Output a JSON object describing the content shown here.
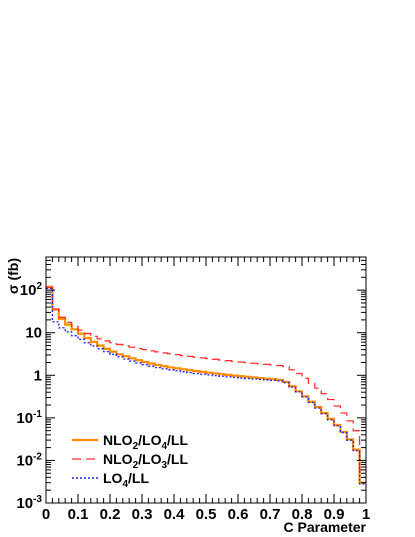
{
  "chart_data": {
    "type": "line",
    "style": "histogram-step",
    "xlabel": "C Parameter",
    "ylabel": "σ (fb)",
    "xlim": [
      0,
      1
    ],
    "ylim": [
      0.001,
      600
    ],
    "yscale": "log",
    "grid": false,
    "legend_position": "bottom-left",
    "x_ticks": [
      "0",
      "0.1",
      "0.2",
      "0.3",
      "0.4",
      "0.5",
      "0.6",
      "0.7",
      "0.8",
      "0.9",
      "1"
    ],
    "y_ticks": [
      {
        "base": "10",
        "exp": "-3",
        "value": 0.001
      },
      {
        "base": "10",
        "exp": "-2",
        "value": 0.01
      },
      {
        "base": "10",
        "exp": "-1",
        "value": 0.1
      },
      {
        "base": "1",
        "exp": "",
        "value": 1
      },
      {
        "base": "10",
        "exp": "",
        "value": 10
      },
      {
        "base": "10",
        "exp": "2",
        "value": 100
      }
    ],
    "bin_edges": [
      0,
      0.02,
      0.04,
      0.06,
      0.08,
      0.1,
      0.12,
      0.14,
      0.16,
      0.18,
      0.2,
      0.22,
      0.24,
      0.26,
      0.28,
      0.3,
      0.32,
      0.34,
      0.36,
      0.38,
      0.4,
      0.42,
      0.44,
      0.46,
      0.48,
      0.5,
      0.52,
      0.54,
      0.56,
      0.58,
      0.6,
      0.62,
      0.64,
      0.66,
      0.68,
      0.7,
      0.72,
      0.74,
      0.76,
      0.78,
      0.8,
      0.82,
      0.84,
      0.86,
      0.88,
      0.9,
      0.92,
      0.94,
      0.96,
      0.98,
      1.0
    ],
    "series": [
      {
        "name_main": "NLO",
        "name_parts": [
          {
            "t": "NLO",
            "sub": false
          },
          {
            "t": "2",
            "sub": true
          },
          {
            "t": "/LO",
            "sub": false
          },
          {
            "t": "4",
            "sub": true
          },
          {
            "t": "/LL",
            "sub": false
          }
        ],
        "color": "#ff8c00",
        "dash": "",
        "width": 2.2,
        "values": [
          120,
          35,
          21,
          15.5,
          12,
          9.5,
          7.5,
          6.1,
          5.0,
          4.2,
          3.6,
          3.1,
          2.8,
          2.5,
          2.25,
          2.05,
          1.88,
          1.75,
          1.63,
          1.53,
          1.45,
          1.38,
          1.31,
          1.25,
          1.2,
          1.15,
          1.1,
          1.06,
          1.02,
          0.98,
          0.95,
          0.92,
          0.89,
          0.86,
          0.83,
          0.81,
          0.78,
          0.7,
          0.55,
          0.42,
          0.32,
          0.24,
          0.18,
          0.13,
          0.095,
          0.068,
          0.047,
          0.031,
          0.018,
          0.003
        ]
      },
      {
        "name_main": "NLO",
        "name_parts": [
          {
            "t": "NLO",
            "sub": false
          },
          {
            "t": "2",
            "sub": true
          },
          {
            "t": "/LO",
            "sub": false
          },
          {
            "t": "3",
            "sub": true
          },
          {
            "t": "/LL",
            "sub": false
          }
        ],
        "color": "#ff3030",
        "dash": "9,5",
        "width": 1.3,
        "values": [
          115,
          36,
          23,
          17.5,
          14,
          11.5,
          9.6,
          8.2,
          7.2,
          6.4,
          5.8,
          5.3,
          4.9,
          4.55,
          4.25,
          4.0,
          3.75,
          3.55,
          3.35,
          3.2,
          3.05,
          2.9,
          2.78,
          2.66,
          2.56,
          2.46,
          2.37,
          2.28,
          2.2,
          2.12,
          2.05,
          1.98,
          1.92,
          1.86,
          1.8,
          1.75,
          1.7,
          1.6,
          1.35,
          1.1,
          0.85,
          0.65,
          0.5,
          0.37,
          0.27,
          0.19,
          0.13,
          0.085,
          0.05,
          0.006
        ]
      },
      {
        "name_main": "LO",
        "name_parts": [
          {
            "t": "LO",
            "sub": false
          },
          {
            "t": "4",
            "sub": true
          },
          {
            "t": "/LL",
            "sub": false
          }
        ],
        "color": "#2a2ad8",
        "dash": "2,2",
        "width": 1.4,
        "values": [
          110,
          18,
          13,
          10.5,
          8.5,
          7.0,
          5.8,
          4.9,
          4.2,
          3.6,
          3.1,
          2.7,
          2.4,
          2.15,
          1.95,
          1.78,
          1.64,
          1.52,
          1.42,
          1.34,
          1.27,
          1.21,
          1.15,
          1.1,
          1.06,
          1.02,
          0.98,
          0.95,
          0.92,
          0.89,
          0.86,
          0.84,
          0.82,
          0.8,
          0.78,
          0.76,
          0.74,
          0.67,
          0.53,
          0.41,
          0.31,
          0.23,
          0.17,
          0.125,
          0.09,
          0.065,
          0.045,
          0.03,
          0.017,
          0.0028
        ]
      }
    ]
  }
}
